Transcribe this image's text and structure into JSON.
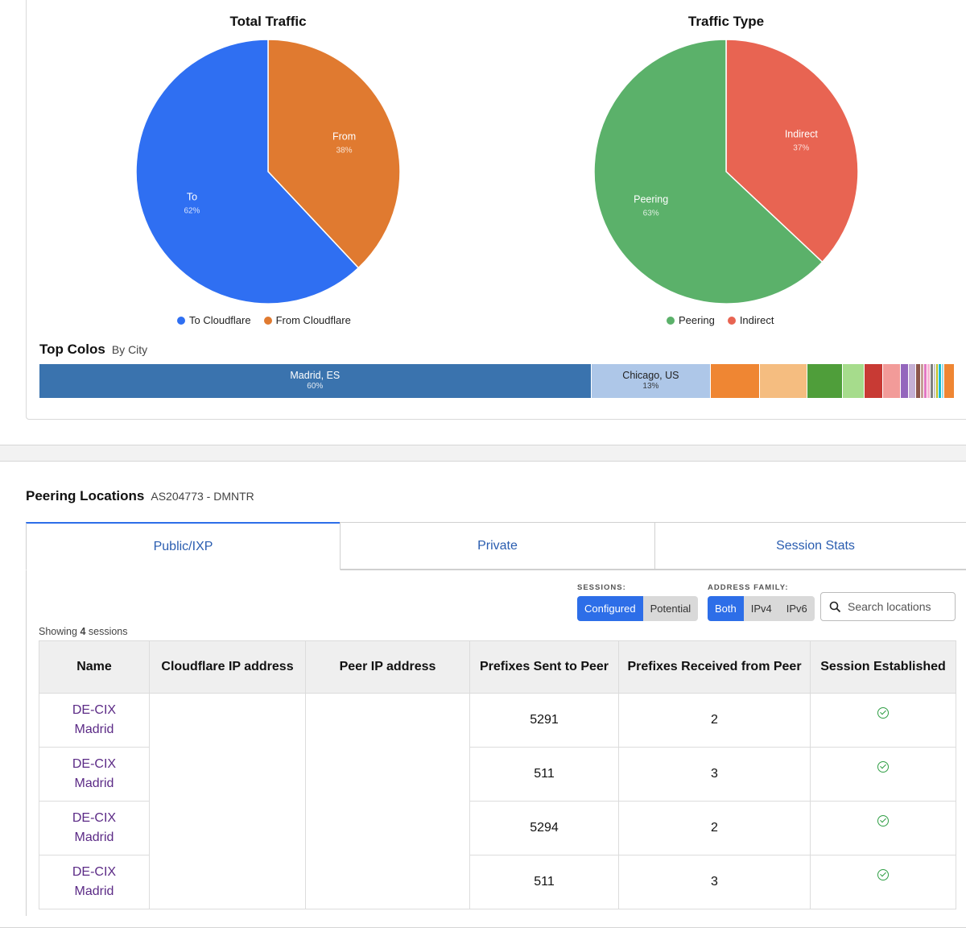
{
  "charts": {
    "total_traffic": {
      "title": "Total Traffic",
      "slices": [
        {
          "label": "To",
          "pct": "62%",
          "value": 62,
          "color": "#2f6ff2"
        },
        {
          "label": "From",
          "pct": "38%",
          "value": 38,
          "color": "#e07a30"
        }
      ],
      "legend": [
        {
          "label": "To Cloudflare",
          "color": "#2f6ff2"
        },
        {
          "label": "From Cloudflare",
          "color": "#e07a30"
        }
      ]
    },
    "traffic_type": {
      "title": "Traffic Type",
      "slices": [
        {
          "label": "Indirect",
          "pct": "37%",
          "value": 37,
          "color": "#e86452"
        },
        {
          "label": "Peering",
          "pct": "63%",
          "value": 63,
          "color": "#5bb16a"
        }
      ],
      "legend": [
        {
          "label": "Peering",
          "color": "#5bb16a"
        },
        {
          "label": "Indirect",
          "color": "#e86452"
        }
      ]
    }
  },
  "chart_data": [
    {
      "type": "pie",
      "title": "Total Traffic",
      "categories": [
        "To Cloudflare",
        "From Cloudflare"
      ],
      "values": [
        62,
        38
      ]
    },
    {
      "type": "pie",
      "title": "Traffic Type",
      "categories": [
        "Peering",
        "Indirect"
      ],
      "values": [
        63,
        37
      ]
    },
    {
      "type": "bar",
      "title": "Top Colos",
      "subtitle": "By City",
      "categories": [
        "Madrid, ES",
        "Chicago, US"
      ],
      "values": [
        60,
        13
      ]
    }
  ],
  "top_colos": {
    "title": "Top Colos",
    "subtitle": "By City",
    "segments": [
      {
        "label": "Madrid, ES",
        "pct": "60%",
        "value": 60,
        "color": "#3a73ae"
      },
      {
        "label": "Chicago, US",
        "pct": "13%",
        "value": 13,
        "color": "#aec7e8"
      },
      {
        "label": "",
        "pct": "",
        "value": 5.3,
        "color": "#ef8633"
      },
      {
        "label": "",
        "pct": "",
        "value": 5.2,
        "color": "#f5bd80"
      },
      {
        "label": "",
        "pct": "",
        "value": 3.8,
        "color": "#4f9e3a"
      },
      {
        "label": "",
        "pct": "",
        "value": 2.4,
        "color": "#a6dc8c"
      },
      {
        "label": "",
        "pct": "",
        "value": 2.0,
        "color": "#c83a34"
      },
      {
        "label": "",
        "pct": "",
        "value": 1.9,
        "color": "#f29b99"
      },
      {
        "label": "",
        "pct": "",
        "value": 0.9,
        "color": "#9466bd"
      },
      {
        "label": "",
        "pct": "",
        "value": 0.8,
        "color": "#c5b0d5"
      },
      {
        "label": "",
        "pct": "",
        "value": 0.5,
        "color": "#8c564b"
      },
      {
        "label": "",
        "pct": "",
        "value": 0.4,
        "color": "#c49c94"
      },
      {
        "label": "",
        "pct": "",
        "value": 0.35,
        "color": "#e377c2"
      },
      {
        "label": "",
        "pct": "",
        "value": 0.35,
        "color": "#f7b6d2"
      },
      {
        "label": "",
        "pct": "",
        "value": 0.3,
        "color": "#7f7f7f"
      },
      {
        "label": "",
        "pct": "",
        "value": 0.3,
        "color": "#c7c7c7"
      },
      {
        "label": "",
        "pct": "",
        "value": 0.3,
        "color": "#bcbd22"
      },
      {
        "label": "",
        "pct": "",
        "value": 0.3,
        "color": "#17becf"
      },
      {
        "label": "",
        "pct": "",
        "value": 0.3,
        "color": "#9edae5"
      },
      {
        "label": "",
        "pct": "",
        "value": 1.1,
        "color": "#ef8633"
      }
    ]
  },
  "peering": {
    "title": "Peering Locations",
    "subtitle": "AS204773 - DMNTR",
    "tabs": [
      {
        "label": "Public/IXP",
        "active": true
      },
      {
        "label": "Private",
        "active": false
      },
      {
        "label": "Session Stats",
        "active": false
      }
    ],
    "filters": {
      "sessions_label": "SESSIONS:",
      "sessions": [
        {
          "label": "Configured",
          "on": true
        },
        {
          "label": "Potential",
          "on": false
        }
      ],
      "family_label": "ADDRESS FAMILY:",
      "family": [
        {
          "label": "Both",
          "on": true
        },
        {
          "label": "IPv4",
          "on": false
        },
        {
          "label": "IPv6",
          "on": false
        }
      ],
      "search_placeholder": "Search locations"
    },
    "showing": {
      "prefix": "Showing",
      "count": "4",
      "suffix": "sessions"
    },
    "columns": [
      "Name",
      "Cloudflare IP address",
      "Peer IP address",
      "Prefixes Sent to Peer",
      "Prefixes Received from Peer",
      "Session Established"
    ],
    "rows": [
      {
        "name_line1": "DE-CIX",
        "name_line2": "Madrid",
        "cf_ip": "",
        "peer_ip": "",
        "sent": "5291",
        "received": "2",
        "established": true
      },
      {
        "name_line1": "DE-CIX",
        "name_line2": "Madrid",
        "cf_ip": "",
        "peer_ip": "",
        "sent": "511",
        "received": "3",
        "established": true
      },
      {
        "name_line1": "DE-CIX",
        "name_line2": "Madrid",
        "cf_ip": "",
        "peer_ip": "",
        "sent": "5294",
        "received": "2",
        "established": true
      },
      {
        "name_line1": "DE-CIX",
        "name_line2": "Madrid",
        "cf_ip": "",
        "peer_ip": "",
        "sent": "511",
        "received": "3",
        "established": true
      }
    ]
  }
}
